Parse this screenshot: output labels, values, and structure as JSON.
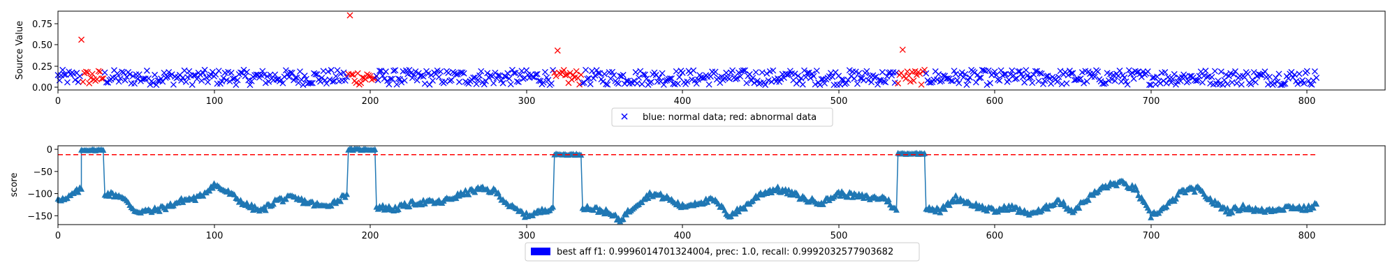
{
  "chart_data": [
    {
      "type": "scatter",
      "title": "",
      "xlabel": "",
      "ylabel": "Source Value",
      "xlim": [
        0,
        850
      ],
      "ylim": [
        -0.03,
        0.91
      ],
      "xticks": [
        0,
        100,
        200,
        300,
        400,
        500,
        600,
        700,
        800
      ],
      "yticks": [
        0.0,
        0.25,
        0.5,
        0.75
      ],
      "ytick_labels": [
        "0.00",
        "0.25",
        "0.50",
        "0.75"
      ],
      "grid": false,
      "n_points": 807,
      "marker": "x",
      "legend": {
        "position": "bottom-center",
        "label": "blue: normal data; red: abnormal data"
      },
      "colors": {
        "normal": "#0000ff",
        "abnormal": "#ff0000"
      },
      "baseline_value_range": [
        0.03,
        0.21
      ],
      "abnormal_segments": [
        [
          15,
          29
        ],
        [
          186,
          203
        ],
        [
          318,
          335
        ],
        [
          538,
          555
        ]
      ],
      "spikes": [
        {
          "x": 15,
          "y": 0.57
        },
        {
          "x": 187,
          "y": 0.86
        },
        {
          "x": 320,
          "y": 0.44
        },
        {
          "x": 541,
          "y": 0.45
        }
      ]
    },
    {
      "type": "line",
      "title": "",
      "xlabel": "",
      "ylabel": "score",
      "xlim": [
        0,
        850
      ],
      "ylim": [
        -170,
        8
      ],
      "xticks": [
        0,
        100,
        200,
        300,
        400,
        500,
        600,
        700,
        800
      ],
      "yticks": [
        0,
        -50,
        -100,
        -150
      ],
      "ytick_labels": [
        "0",
        "−50",
        "−100",
        "−150"
      ],
      "grid": false,
      "marker": "^",
      "line_color": "#1f77b4",
      "threshold": {
        "value": -12,
        "x_range": [
          0,
          807
        ],
        "color": "#ff0000",
        "style": "dashed"
      },
      "legend": {
        "position": "bottom-center",
        "label": "best aff f1: 0.9996014701324004, prec: 1.0, recall: 0.9992032577903682",
        "patch_color": "#0000ff"
      },
      "segments": [
        {
          "x": [
            0,
            5,
            10,
            15
          ],
          "y": [
            -110,
            -115,
            -100,
            -90
          ]
        },
        {
          "x": [
            15,
            29
          ],
          "y": [
            -2,
            -2
          ]
        },
        {
          "x": [
            30,
            40,
            50,
            60,
            70,
            80,
            90,
            100,
            110,
            120,
            130,
            140,
            150,
            160,
            170,
            180,
            185
          ],
          "y": [
            -100,
            -105,
            -140,
            -140,
            -130,
            -115,
            -110,
            -80,
            -100,
            -125,
            -140,
            -115,
            -110,
            -120,
            -130,
            -115,
            -100
          ]
        },
        {
          "x": [
            186,
            203
          ],
          "y": [
            -1,
            -1
          ]
        },
        {
          "x": [
            204,
            215,
            230,
            245,
            260,
            270,
            280,
            290,
            300,
            310,
            317
          ],
          "y": [
            -130,
            -135,
            -120,
            -120,
            -100,
            -90,
            -95,
            -130,
            -150,
            -140,
            -130
          ]
        },
        {
          "x": [
            318,
            335
          ],
          "y": [
            -12,
            -12
          ]
        },
        {
          "x": [
            336,
            350,
            360,
            370,
            380,
            390,
            400,
            410,
            420,
            430,
            440,
            450,
            460,
            470,
            480,
            490,
            500,
            510,
            520,
            530,
            537
          ],
          "y": [
            -130,
            -140,
            -160,
            -125,
            -100,
            -110,
            -130,
            -120,
            -115,
            -150,
            -130,
            -100,
            -90,
            -100,
            -115,
            -120,
            -100,
            -105,
            -110,
            -110,
            -140
          ]
        },
        {
          "x": [
            538,
            555
          ],
          "y": [
            -10,
            -10
          ]
        },
        {
          "x": [
            556,
            565,
            575,
            590,
            600,
            610,
            620,
            630,
            640,
            650,
            660,
            670,
            680,
            690,
            700,
            710,
            720,
            730,
            740,
            750,
            760,
            770,
            780,
            790,
            800,
            806
          ],
          "y": [
            -130,
            -140,
            -110,
            -130,
            -140,
            -130,
            -145,
            -140,
            -115,
            -140,
            -110,
            -85,
            -75,
            -90,
            -150,
            -130,
            -95,
            -90,
            -120,
            -140,
            -130,
            -140,
            -135,
            -130,
            -135,
            -125
          ]
        }
      ]
    }
  ]
}
